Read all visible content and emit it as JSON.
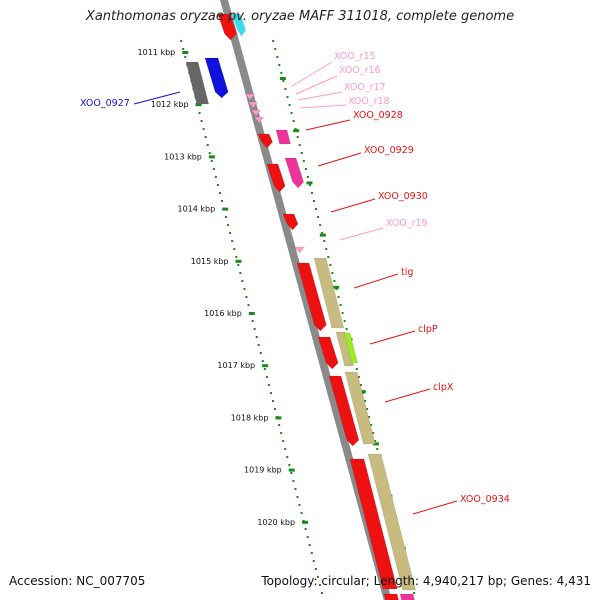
{
  "title": "Xanthomonas oryzae pv. oryzae MAFF 311018, complete genome",
  "accession": "Accession: NC_007705",
  "topology": "Topology: circular; Length: 4,940,217 bp; Genes: 4,431",
  "colors": {
    "backbone": "#8a8a8a",
    "ruler": "#1a8a1a",
    "gene_red": "#ee1111",
    "rrna_pink": "#ff99cc",
    "magenta": "#ee3399",
    "olive": "#c8bb80",
    "blue": "#1111dd",
    "gray": "#666666",
    "lime": "#99ee22",
    "cyan": "#33ddee"
  },
  "ruler_ticks": [
    {
      "label": "1011 kbp"
    },
    {
      "label": "1012 kbp"
    },
    {
      "label": "1013 kbp"
    },
    {
      "label": "1014 kbp"
    },
    {
      "label": "1015 kbp"
    },
    {
      "label": "1016 kbp"
    },
    {
      "label": "1017 kbp"
    },
    {
      "label": "1018 kbp"
    },
    {
      "label": "1019 kbp"
    },
    {
      "label": "1020 kbp"
    }
  ],
  "feature_labels": [
    {
      "text": "XOO_0927",
      "color": "#1111dd"
    },
    {
      "text": "XOO_r15",
      "color": "#ff99cc"
    },
    {
      "text": "XOO_r16",
      "color": "#ff99cc"
    },
    {
      "text": "XOO_r17",
      "color": "#ff99cc"
    },
    {
      "text": "XOO_r18",
      "color": "#ff99cc"
    },
    {
      "text": "XOO_0928",
      "color": "#ee1111"
    },
    {
      "text": "XOO_0929",
      "color": "#ee1111"
    },
    {
      "text": "XOO_0930",
      "color": "#ee1111"
    },
    {
      "text": "XOO_r19",
      "color": "#ff99cc"
    },
    {
      "text": "tig",
      "color": "#ee1111"
    },
    {
      "text": "clpP",
      "color": "#ee1111"
    },
    {
      "text": "clpX",
      "color": "#ee1111"
    },
    {
      "text": "XOO_0934",
      "color": "#ee1111"
    }
  ]
}
